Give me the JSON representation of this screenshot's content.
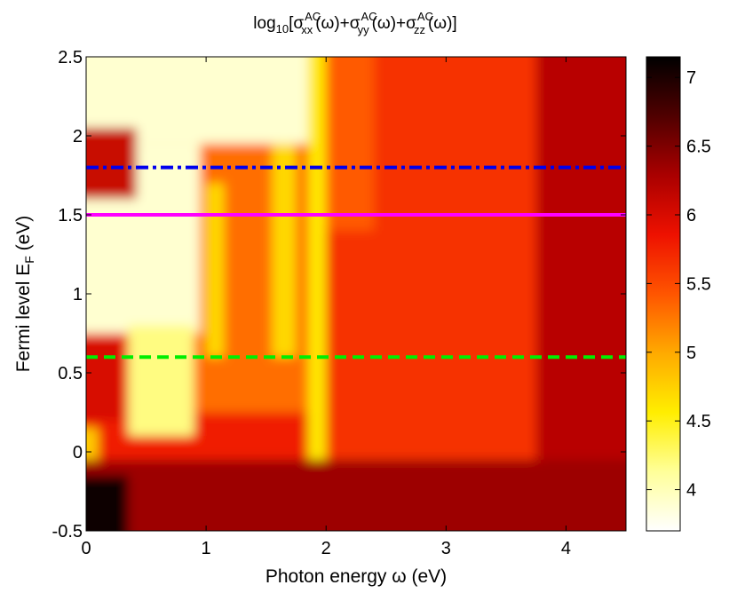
{
  "chart_data": {
    "type": "heatmap",
    "title": {
      "prefix": "log",
      "prefix_sub": "10",
      "open": "[σ",
      "terms": [
        {
          "sup": "AC",
          "sub": "xx",
          "arg": "(ω)+σ"
        },
        {
          "sup": "AC",
          "sub": "yy",
          "arg": "(ω)+σ"
        },
        {
          "sup": "AC",
          "sub": "zz",
          "arg": "(ω)]"
        }
      ]
    },
    "xlabel": "Photon energy ω (eV)",
    "ylabel": {
      "text": "Fermi level E",
      "sub": "F",
      "unit": " (eV)"
    },
    "xlim": [
      0,
      4.5
    ],
    "ylim": [
      -0.5,
      2.5
    ],
    "x_ticks": [
      {
        "value": 0,
        "label": "0"
      },
      {
        "value": 1,
        "label": "1"
      },
      {
        "value": 2,
        "label": "2"
      },
      {
        "value": 3,
        "label": "3"
      },
      {
        "value": 4,
        "label": "4"
      }
    ],
    "y_ticks": [
      {
        "value": -0.5,
        "label": "-0.5"
      },
      {
        "value": 0,
        "label": "0"
      },
      {
        "value": 0.5,
        "label": "0.5"
      },
      {
        "value": 1,
        "label": "1"
      },
      {
        "value": 1.5,
        "label": "1.5"
      },
      {
        "value": 2,
        "label": "2"
      },
      {
        "value": 2.5,
        "label": "2.5"
      }
    ],
    "colorbar": {
      "range": [
        3.7,
        7.15
      ],
      "colormap": "hot-reversed",
      "stops": [
        "#ffffff",
        "#ffff99",
        "#ffee00",
        "#ffaa00",
        "#ff5500",
        "#ee1100",
        "#aa0000",
        "#500000",
        "#000000"
      ],
      "ticks": [
        {
          "value": 4,
          "label": "4"
        },
        {
          "value": 4.5,
          "label": "4.5"
        },
        {
          "value": 5,
          "label": "5"
        },
        {
          "value": 5.5,
          "label": "5.5"
        },
        {
          "value": 6,
          "label": "6"
        },
        {
          "value": 6.5,
          "label": "6.5"
        },
        {
          "value": 7,
          "label": "7"
        }
      ]
    },
    "heatmap_regions": [
      {
        "name": "base",
        "x": [
          0,
          4.5
        ],
        "y": [
          -0.5,
          2.5
        ],
        "value": 5.8
      },
      {
        "name": "high-x-band",
        "x": [
          3.75,
          4.5
        ],
        "y": [
          -0.5,
          2.5
        ],
        "value": 6.2
      },
      {
        "name": "mid-band",
        "x": [
          2.0,
          3.75
        ],
        "y": [
          -0.2,
          2.5
        ],
        "value": 5.65
      },
      {
        "name": "step-band",
        "x": [
          1.9,
          2.4
        ],
        "y": [
          1.4,
          2.5
        ],
        "value": 5.4
      },
      {
        "name": "yellow-column",
        "x": [
          1.85,
          2.0
        ],
        "y": [
          -0.1,
          2.5
        ],
        "value": 4.6
      },
      {
        "name": "orange-plateau",
        "x": [
          0.8,
          1.85
        ],
        "y": [
          0.25,
          1.95
        ],
        "value": 5.3
      },
      {
        "name": "yellow-stripe-1",
        "x": [
          1.0,
          1.15
        ],
        "y": [
          0.6,
          1.7
        ],
        "value": 4.7
      },
      {
        "name": "yellow-stripe-2",
        "x": [
          1.55,
          1.75
        ],
        "y": [
          0.6,
          1.95
        ],
        "value": 4.7
      },
      {
        "name": "light-top-left",
        "x": [
          0,
          1.85
        ],
        "y": [
          1.95,
          2.5
        ],
        "value": 3.9
      },
      {
        "name": "light-left",
        "x": [
          0,
          0.95
        ],
        "y": [
          0.75,
          1.95
        ],
        "value": 3.9
      },
      {
        "name": "cream-wedge",
        "x": [
          0.35,
          0.9
        ],
        "y": [
          0.1,
          0.8
        ],
        "value": 4.2
      },
      {
        "name": "red-blob-top",
        "x": [
          0,
          0.42
        ],
        "y": [
          1.6,
          2.05
        ],
        "value": 6.1
      },
      {
        "name": "red-blob-bottom",
        "x": [
          0,
          0.3
        ],
        "y": [
          0.2,
          0.72
        ],
        "value": 6.0
      },
      {
        "name": "yellow-spot",
        "x": [
          0,
          0.1
        ],
        "y": [
          -0.05,
          0.15
        ],
        "value": 4.8
      },
      {
        "name": "dark-lower",
        "x": [
          0,
          4.5
        ],
        "y": [
          -0.5,
          -0.05
        ],
        "value": 6.35
      },
      {
        "name": "black-corner",
        "x": [
          0,
          0.35
        ],
        "y": [
          -0.5,
          -0.15
        ],
        "value": 7.1
      }
    ],
    "lines": [
      {
        "name": "blue-dash-dot",
        "y": 1.8,
        "color": "#0000ee",
        "style": "dash-dot"
      },
      {
        "name": "magenta-solid",
        "y": 1.5,
        "color": "#ff00ff",
        "style": "solid"
      },
      {
        "name": "green-dashed",
        "y": 0.6,
        "color": "#00ee00",
        "style": "dashed"
      }
    ]
  }
}
